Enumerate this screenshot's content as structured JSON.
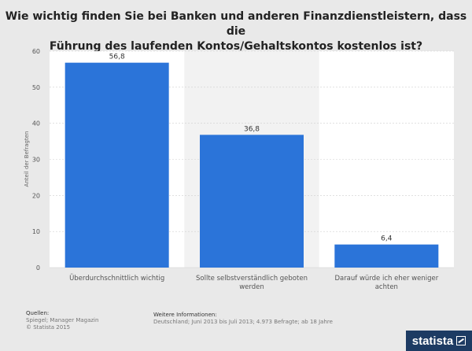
{
  "title_line1": "Wie wichtig finden Sie bei Banken und anderen Finanzdienstleistern, dass die",
  "title_line2": "Führung des laufenden Kontos/Gehaltskontos kostenlos ist?",
  "colors": {
    "bar": "#2b74d9",
    "background": "#e9e9e9",
    "plot": "#ffffff",
    "highlight": "#f2f2f2",
    "grid": "#cfcfcf"
  },
  "chart_data": {
    "type": "bar",
    "categories": [
      [
        "Überdurchschnittlich wichtig"
      ],
      [
        "Sollte selbstverständlich geboten",
        "werden"
      ],
      [
        "Darauf würde ich eher weniger",
        "achten"
      ]
    ],
    "values": [
      56.8,
      36.8,
      6.4
    ],
    "value_labels": [
      "56,8",
      "36,8",
      "6,4"
    ],
    "ylabel": "Anteil der Befragten",
    "ylim": [
      0,
      60
    ],
    "yticks": [
      0,
      10,
      20,
      30,
      40,
      50,
      60
    ],
    "grid": true
  },
  "footer": {
    "sources_heading": "Quellen:",
    "sources_line1": "Spiegel; Manager Magazin",
    "sources_line2": "© Statista 2015",
    "info_heading": "Weitere Informationen:",
    "info_text": "Deutschland; Juni 2013 bis Juli 2013; 4.973 Befragte; ab 18 Jahre"
  },
  "brand": {
    "name": "statista",
    "icon": "statista-logo-icon"
  }
}
